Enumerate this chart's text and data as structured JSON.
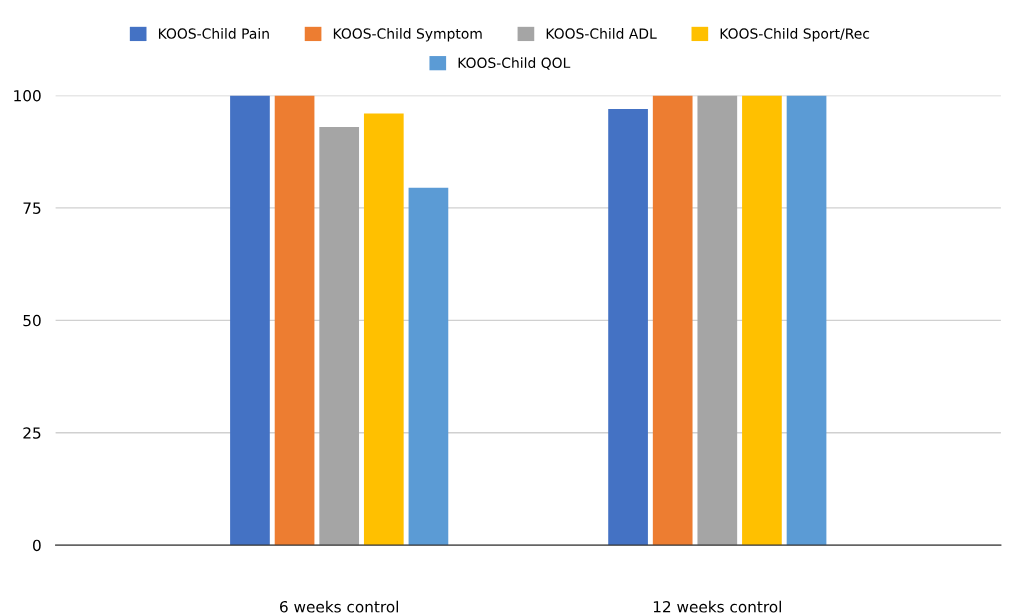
{
  "chart_data": {
    "type": "bar",
    "categories": [
      "6 weeks control",
      "12 weeks control"
    ],
    "series": [
      {
        "name": "KOOS-Child Pain",
        "color": "#4472c4",
        "values": [
          100,
          97
        ]
      },
      {
        "name": "KOOS-Child Symptom",
        "color": "#ed7d31",
        "values": [
          100,
          100
        ]
      },
      {
        "name": "KOOS-Child ADL",
        "color": "#a5a5a5",
        "values": [
          93,
          100
        ]
      },
      {
        "name": "KOOS-Child Sport/Rec",
        "color": "#ffc000",
        "values": [
          96,
          100
        ]
      },
      {
        "name": "KOOS-Child QOL",
        "color": "#5b9bd5",
        "values": [
          79.5,
          100
        ]
      }
    ],
    "ylim": [
      0,
      100
    ],
    "yticks": [
      0,
      25,
      50,
      75,
      100
    ],
    "grid": "y",
    "legend": "top"
  }
}
